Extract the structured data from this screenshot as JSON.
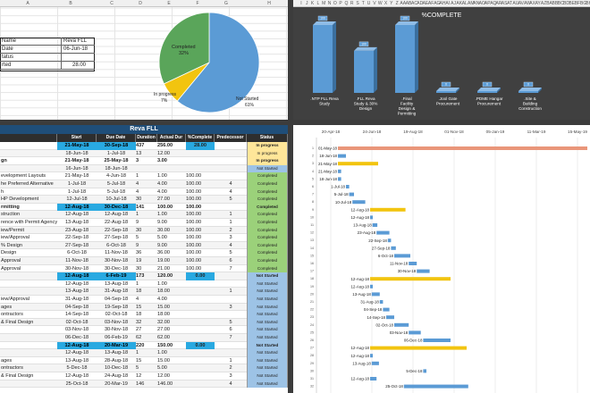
{
  "sheet": {
    "columns": [
      "A",
      "B",
      "C",
      "D",
      "E",
      "F",
      "G",
      "H",
      "I",
      "J",
      "K",
      "L",
      "M",
      "N",
      "O",
      "P",
      "Q",
      "R",
      "S",
      "T",
      "U",
      "V",
      "W",
      "X",
      "Y",
      "Z",
      "AA",
      "AB",
      "AC",
      "AD",
      "AE",
      "AF",
      "AG",
      "AH",
      "AI",
      "AJ",
      "AK",
      "AL",
      "AM",
      "AN",
      "AO",
      "AP",
      "AQ",
      "AR",
      "AS",
      "AT",
      "AU",
      "AV",
      "AW",
      "AX",
      "AY",
      "AZ",
      "BA",
      "BB",
      "BC",
      "BD",
      "BE",
      "BF",
      "BG",
      "BH",
      "BI"
    ]
  },
  "info": {
    "rows": [
      {
        "label": "Name",
        "value": "Reva FLL"
      },
      {
        "label": "Date",
        "value": "06-Jun-18"
      },
      {
        "label": "tatus",
        "value": ""
      },
      {
        "label": "rted",
        "value": "28.00"
      }
    ]
  },
  "pie": {
    "slices": [
      {
        "label": "Completed",
        "pct": "32%",
        "value": 32,
        "color": "#5aa55a"
      },
      {
        "label": "In progress",
        "pct": "7%",
        "value": 7,
        "color": "#f2c40f"
      },
      {
        "label": "Not Started",
        "pct": "61%",
        "value": 61,
        "color": "#5b9bd5"
      }
    ]
  },
  "chart_data": {
    "type": "bar",
    "title": "%COMPLETE",
    "categories": [
      ".NTP FLL Reva Study",
      ".FLL Reva Study & 30% Design",
      ".Final Facility Design & Permitting",
      ".Jool Gate Procurement",
      ".PDME Hangar Procurement",
      ".Site & Building Construction"
    ],
    "values": [
      100,
      100,
      100,
      0,
      0,
      0
    ],
    "value_labels": [
      "100",
      "100",
      "100",
      "0",
      "0",
      "0"
    ],
    "ylim": [
      0,
      100
    ],
    "color": "#5b9bd5"
  },
  "table": {
    "title": "Reva FLL",
    "headers": [
      "",
      "Start",
      "Due Date",
      "Duration",
      "Actual Dur",
      "%Complete",
      "Predecessor",
      "Status"
    ],
    "rows": [
      {
        "task": "",
        "start": "21-May-18",
        "due": "30-Sep-18",
        "dur": "437",
        "act": "256.00",
        "pct": "28.00",
        "pred": "",
        "status": "In progress",
        "summary": true,
        "hl": true
      },
      {
        "task": "",
        "start": "18-Jun-18",
        "due": "1-Jul-18",
        "dur": "13",
        "act": "12.00",
        "pct": "",
        "pred": "",
        "status": "In progress",
        "summary": false,
        "hl": false
      },
      {
        "task": "gn",
        "start": "21-May-18",
        "due": "25-May-18",
        "dur": "3",
        "act": "3.00",
        "pct": "",
        "pred": "",
        "status": "In progress",
        "summary": true,
        "hl": false
      },
      {
        "task": "",
        "start": "16-Jun-18",
        "due": "18-Jun-18",
        "dur": "",
        "act": "",
        "pct": "",
        "pred": "",
        "status": "Not Started",
        "summary": false,
        "hl": false
      },
      {
        "task": "evelopment Layouts",
        "start": "21-May-18",
        "due": "4-Jun-18",
        "dur": "1",
        "act": "1.00",
        "pct": "100.00",
        "pred": "",
        "status": "Completed",
        "summary": false,
        "hl": false
      },
      {
        "task": "he Preferred Alternative",
        "start": "1-Jul-18",
        "due": "5-Jul-18",
        "dur": "4",
        "act": "4.00",
        "pct": "100.00",
        "pred": "4",
        "status": "Completed",
        "summary": false,
        "hl": false
      },
      {
        "task": "h",
        "start": "1-Jul-18",
        "due": "5-Jul-18",
        "dur": "4",
        "act": "4.00",
        "pct": "100.00",
        "pred": "4",
        "status": "Completed",
        "summary": false,
        "hl": false
      },
      {
        "task": "HP Development",
        "start": "12-Jul-18",
        "due": "10-Jul-18",
        "dur": "30",
        "act": "27.00",
        "pct": "100.00",
        "pred": "5",
        "status": "Completed",
        "summary": false,
        "hl": false
      },
      {
        "task": "rmitting",
        "start": "12-Aug-18",
        "due": "30-Dec-18",
        "dur": "141",
        "act": "100.00",
        "pct": "100.00",
        "pred": "",
        "status": "Completed",
        "summary": true,
        "hl": true
      },
      {
        "task": "struction",
        "start": "12-Aug-18",
        "due": "12-Aug-18",
        "dur": "1",
        "act": "1.00",
        "pct": "100.00",
        "pred": "1",
        "status": "Completed",
        "summary": false,
        "hl": false
      },
      {
        "task": "rence with Permit Agency",
        "start": "13-Aug-18",
        "due": "22-Aug-18",
        "dur": "9",
        "act": "9.00",
        "pct": "100.00",
        "pred": "1",
        "status": "Completed",
        "summary": false,
        "hl": false
      },
      {
        "task": "iew/Permit",
        "start": "23-Aug-18",
        "due": "22-Sep-18",
        "dur": "30",
        "act": "30.00",
        "pct": "100.00",
        "pred": "2",
        "status": "Completed",
        "summary": false,
        "hl": false
      },
      {
        "task": "iew/Approval",
        "start": "22-Sep-18",
        "due": "27-Sep-18",
        "dur": "5",
        "act": "5.00",
        "pct": "100.00",
        "pred": "3",
        "status": "Completed",
        "summary": false,
        "hl": false
      },
      {
        "task": "% Design",
        "start": "27-Sep-18",
        "due": "6-Oct-18",
        "dur": "9",
        "act": "9.00",
        "pct": "100.00",
        "pred": "4",
        "status": "Completed",
        "summary": false,
        "hl": false
      },
      {
        "task": "Design",
        "start": "6-Oct-18",
        "due": "11-Nov-18",
        "dur": "36",
        "act": "36.00",
        "pct": "100.00",
        "pred": "5",
        "status": "Completed",
        "summary": false,
        "hl": false
      },
      {
        "task": "Approval",
        "start": "11-Nov-18",
        "due": "30-Nov-18",
        "dur": "19",
        "act": "19.00",
        "pct": "100.00",
        "pred": "6",
        "status": "Completed",
        "summary": false,
        "hl": false
      },
      {
        "task": "Approval",
        "start": "30-Nov-18",
        "due": "30-Dec-18",
        "dur": "30",
        "act": "21.00",
        "pct": "100.00",
        "pred": "7",
        "status": "Completed",
        "summary": false,
        "hl": false
      },
      {
        "task": "",
        "start": "12-Aug-18",
        "due": "6-Feb-19",
        "dur": "173",
        "act": "120.00",
        "pct": "0.00",
        "pred": "",
        "status": "Not Started",
        "summary": true,
        "hl": true
      },
      {
        "task": "",
        "start": "12-Aug-18",
        "due": "13-Aug-18",
        "dur": "1",
        "act": "1.00",
        "pct": "",
        "pred": "",
        "status": "Not Started",
        "summary": false,
        "hl": false
      },
      {
        "task": "",
        "start": "13-Aug-18",
        "due": "31-Aug-18",
        "dur": "18",
        "act": "18.00",
        "pct": "",
        "pred": "1",
        "status": "Not Started",
        "summary": false,
        "hl": false
      },
      {
        "task": "iew/Approval",
        "start": "31-Aug-18",
        "due": "04-Sep-18",
        "dur": "4",
        "act": "4.00",
        "pct": "",
        "pred": "",
        "status": "Not Started",
        "summary": false,
        "hl": false
      },
      {
        "task": "ages",
        "start": "04-Sep-18",
        "due": "19-Sep-18",
        "dur": "15",
        "act": "15.00",
        "pct": "",
        "pred": "3",
        "status": "Not Started",
        "summary": false,
        "hl": false
      },
      {
        "task": "ontractors",
        "start": "14-Sep-18",
        "due": "02-Oct-18",
        "dur": "18",
        "act": "18.00",
        "pct": "",
        "pred": "",
        "status": "Not Started",
        "summary": false,
        "hl": false
      },
      {
        "task": "& Final Design",
        "start": "02-Oct-18",
        "due": "03-Nov-18",
        "dur": "32",
        "act": "32.00",
        "pct": "",
        "pred": "5",
        "status": "Not Started",
        "summary": false,
        "hl": false
      },
      {
        "task": "",
        "start": "03-Nov-18",
        "due": "30-Nov-18",
        "dur": "27",
        "act": "27.00",
        "pct": "",
        "pred": "6",
        "status": "Not Started",
        "summary": false,
        "hl": false
      },
      {
        "task": "",
        "start": "06-Dec-18",
        "due": "06-Feb-19",
        "dur": "62",
        "act": "62.00",
        "pct": "",
        "pred": "7",
        "status": "Not Started",
        "summary": false,
        "hl": false
      },
      {
        "task": "",
        "start": "12-Aug-18",
        "due": "20-Mar-19",
        "dur": "220",
        "act": "150.00",
        "pct": "0.00",
        "pred": "",
        "status": "Not Started",
        "summary": true,
        "hl": true
      },
      {
        "task": "",
        "start": "12-Aug-18",
        "due": "13-Aug-18",
        "dur": "1",
        "act": "1.00",
        "pct": "",
        "pred": "",
        "status": "Not Started",
        "summary": false,
        "hl": false
      },
      {
        "task": "ages",
        "start": "13-Aug-18",
        "due": "28-Aug-18",
        "dur": "15",
        "act": "15.00",
        "pct": "",
        "pred": "1",
        "status": "Not Started",
        "summary": false,
        "hl": false
      },
      {
        "task": "ontractors",
        "start": "5-Dec-18",
        "due": "10-Dec-18",
        "dur": "5",
        "act": "5.00",
        "pct": "",
        "pred": "2",
        "status": "Not Started",
        "summary": false,
        "hl": false
      },
      {
        "task": "& Final Design",
        "start": "12-Aug-18",
        "due": "24-Aug-18",
        "dur": "12",
        "act": "12.00",
        "pct": "",
        "pred": "3",
        "status": "Not Started",
        "summary": false,
        "hl": false
      },
      {
        "task": "",
        "start": "25-Oct-18",
        "due": "20-Mar-19",
        "dur": "146",
        "act": "146.00",
        "pct": "",
        "pred": "4",
        "status": "Not Started",
        "summary": false,
        "hl": false
      }
    ]
  },
  "gantt": {
    "axis_labels": [
      "20-Apr-18",
      "24-Jun-18",
      "19-Aug-18",
      "01-Nov-18",
      "05-Jan-19",
      "11-Mar-19",
      "15-May-19"
    ],
    "bars": [
      {
        "label": "01-May-18",
        "start": 0,
        "len": 310,
        "color": "#e9967a"
      },
      {
        "label": "18-Jun-18",
        "start": 0,
        "len": 10,
        "color": "#5b9bd5"
      },
      {
        "label": "21-May-18",
        "start": 0,
        "len": 50,
        "color": "#f2c40f"
      },
      {
        "label": "21-May-18",
        "start": 0,
        "len": 4,
        "color": "#5b9bd5"
      },
      {
        "label": "18-Jun-18",
        "start": 0,
        "len": 4,
        "color": "#5b9bd5"
      },
      {
        "label": "1-Jul-18",
        "start": 10,
        "len": 4,
        "color": "#5b9bd5"
      },
      {
        "label": "5-Jul-18",
        "start": 14,
        "len": 6,
        "color": "#5b9bd5"
      },
      {
        "label": "10-Jul-18",
        "start": 18,
        "len": 16,
        "color": "#5b9bd5"
      },
      {
        "label": "12-Aug-18",
        "start": 40,
        "len": 44,
        "color": "#f2c40f"
      },
      {
        "label": "12-Aug-18",
        "start": 40,
        "len": 3,
        "color": "#5b9bd5"
      },
      {
        "label": "13-Aug-18",
        "start": 43,
        "len": 6,
        "color": "#5b9bd5"
      },
      {
        "label": "23-Aug-18",
        "start": 48,
        "len": 16,
        "color": "#5b9bd5"
      },
      {
        "label": "22-Sep-18",
        "start": 62,
        "len": 4,
        "color": "#5b9bd5"
      },
      {
        "label": "27-Sep-18",
        "start": 66,
        "len": 6,
        "color": "#5b9bd5"
      },
      {
        "label": "6-Oct-18",
        "start": 70,
        "len": 20,
        "color": "#5b9bd5"
      },
      {
        "label": "11-Nov-18",
        "start": 88,
        "len": 10,
        "color": "#5b9bd5"
      },
      {
        "label": "30-Nov-18",
        "start": 98,
        "len": 16,
        "color": "#5b9bd5"
      },
      {
        "label": "12-Aug-18",
        "start": 40,
        "len": 100,
        "color": "#f2c40f"
      },
      {
        "label": "12-Aug-18",
        "start": 40,
        "len": 3,
        "color": "#5b9bd5"
      },
      {
        "label": "13-Aug-18",
        "start": 42,
        "len": 10,
        "color": "#5b9bd5"
      },
      {
        "label": "31-Aug-18",
        "start": 52,
        "len": 4,
        "color": "#5b9bd5"
      },
      {
        "label": "04-Sep-18",
        "start": 56,
        "len": 8,
        "color": "#5b9bd5"
      },
      {
        "label": "14-Sep-18",
        "start": 60,
        "len": 10,
        "color": "#5b9bd5"
      },
      {
        "label": "02-Oct-18",
        "start": 70,
        "len": 18,
        "color": "#5b9bd5"
      },
      {
        "label": "03-Nov-18",
        "start": 88,
        "len": 15,
        "color": "#5b9bd5"
      },
      {
        "label": "06-Dec-18",
        "start": 106,
        "len": 34,
        "color": "#5b9bd5"
      },
      {
        "label": "12-Aug-18",
        "start": 40,
        "len": 120,
        "color": "#f2c40f"
      },
      {
        "label": "12-Aug-18",
        "start": 40,
        "len": 3,
        "color": "#5b9bd5"
      },
      {
        "label": "13-Aug-18",
        "start": 42,
        "len": 9,
        "color": "#5b9bd5"
      },
      {
        "label": "5-Dec-18",
        "start": 106,
        "len": 4,
        "color": "#5b9bd5"
      },
      {
        "label": "12-Aug-18",
        "start": 40,
        "len": 8,
        "color": "#5b9bd5"
      },
      {
        "label": "25-Oct-18",
        "start": 82,
        "len": 80,
        "color": "#5b9bd5"
      }
    ],
    "row_numbers": [
      "1",
      "2",
      "3",
      "4",
      "5",
      "6",
      "7",
      "8",
      "9",
      "10",
      "11",
      "12",
      "13",
      "14",
      "15",
      "16",
      "17",
      "18",
      "19",
      "20",
      "21",
      "22",
      "23",
      "24",
      "25",
      "26",
      "27",
      "28",
      "29",
      "30",
      "31",
      "32"
    ]
  }
}
